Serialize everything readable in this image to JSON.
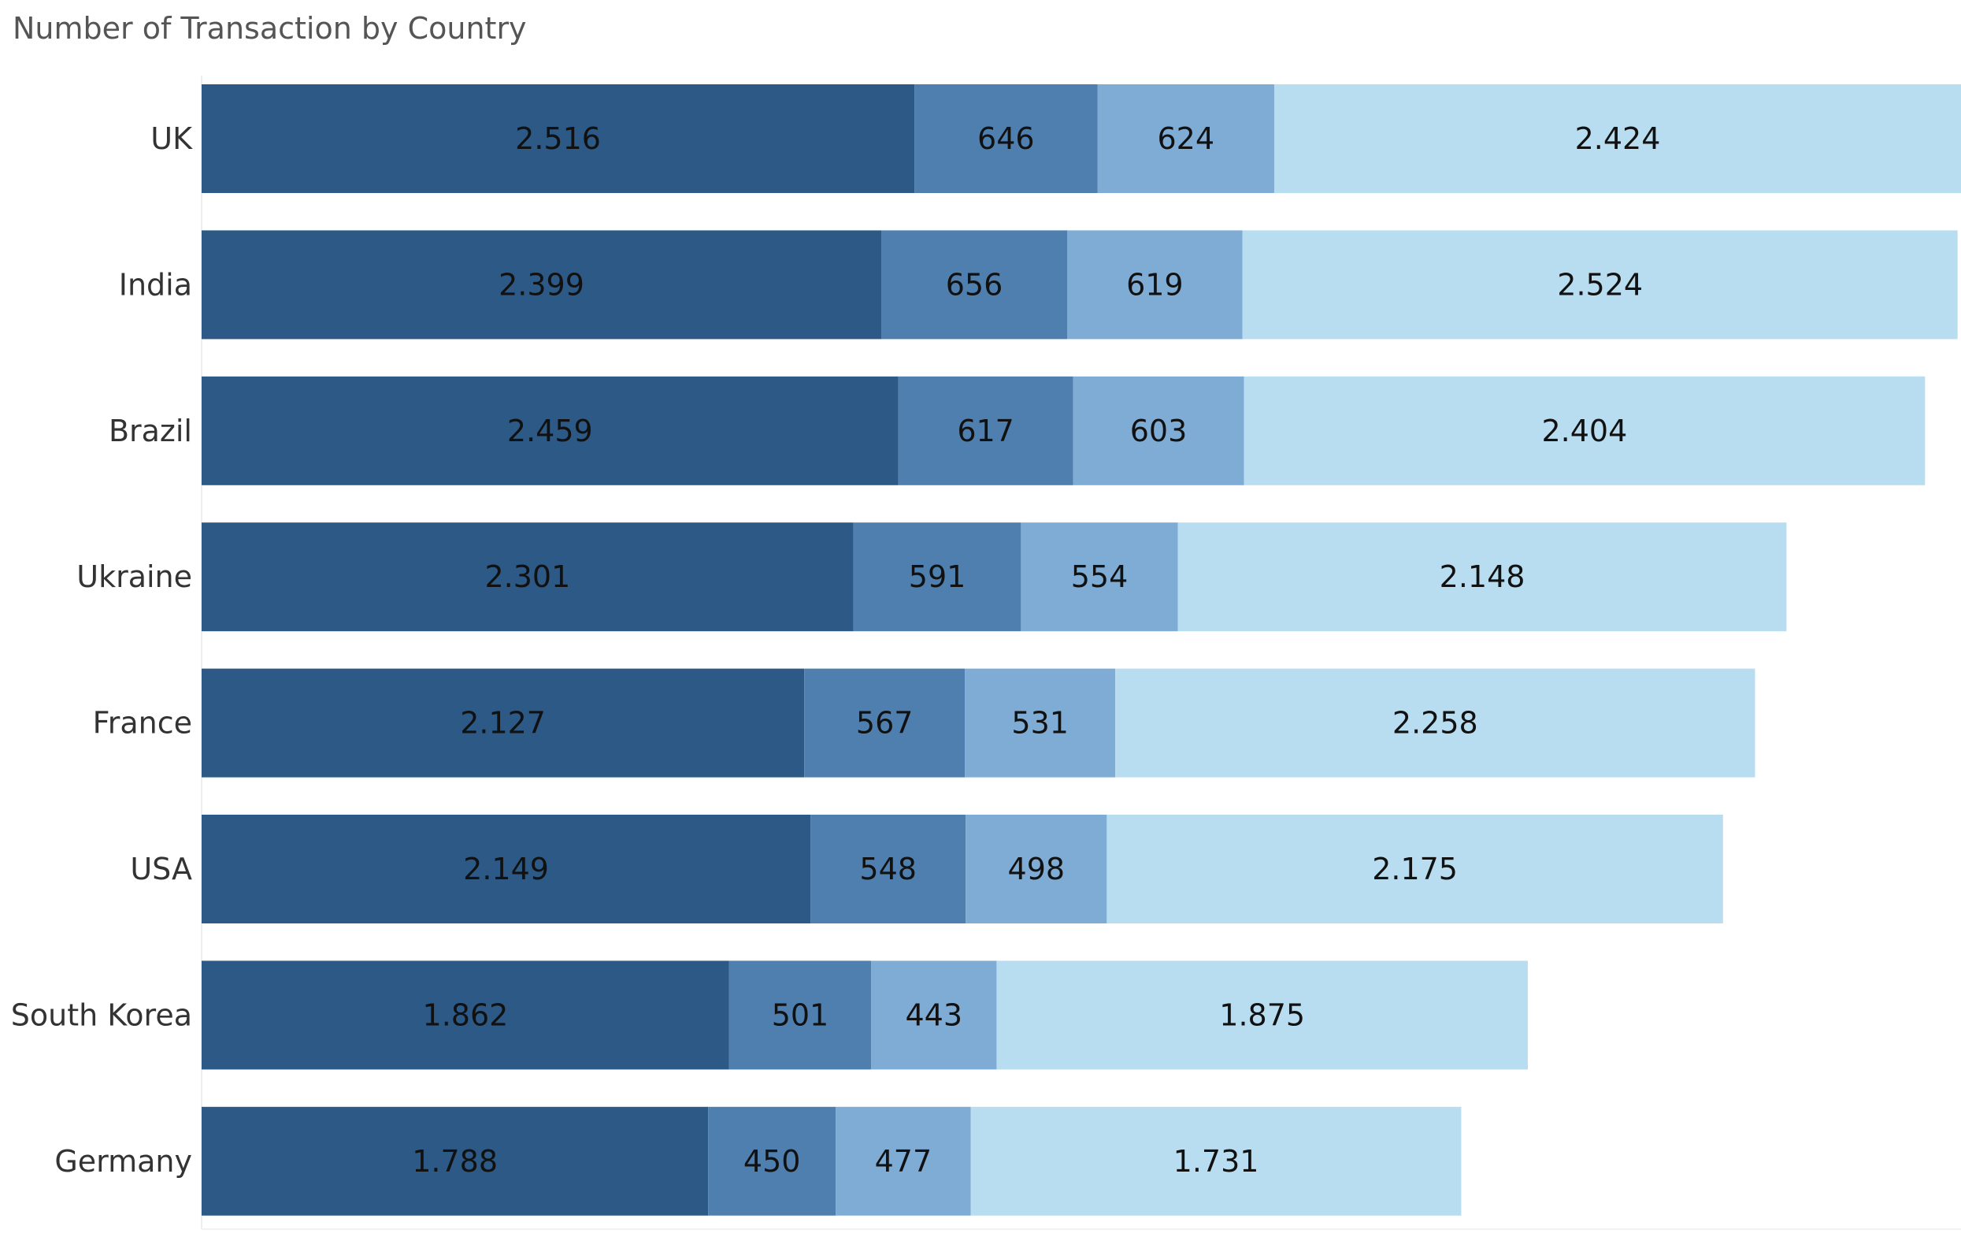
{
  "chart_data": {
    "type": "bar",
    "orientation": "horizontal",
    "stacked": true,
    "title": "Number of Transaction by Country",
    "categories": [
      "UK",
      "India",
      "Brazil",
      "Ukraine",
      "France",
      "USA",
      "South Korea",
      "Germany"
    ],
    "series": [
      {
        "values": [
          2516,
          2399,
          2459,
          2301,
          2127,
          2149,
          1862,
          1788
        ],
        "labels": [
          "2.516",
          "2.399",
          "2.459",
          "2.301",
          "2.127",
          "2.149",
          "1.862",
          "1.788"
        ],
        "color": "#2c5985"
      },
      {
        "values": [
          646,
          656,
          617,
          591,
          567,
          548,
          501,
          450
        ],
        "labels": [
          "646",
          "656",
          "617",
          "591",
          "567",
          "548",
          "501",
          "450"
        ],
        "color": "#4e7fae"
      },
      {
        "values": [
          624,
          619,
          603,
          554,
          531,
          498,
          443,
          477
        ],
        "labels": [
          "624",
          "619",
          "603",
          "554",
          "531",
          "498",
          "443",
          "477"
        ],
        "color": "#7eacd4"
      },
      {
        "values": [
          2424,
          2524,
          2404,
          2148,
          2258,
          2175,
          1875,
          1731
        ],
        "labels": [
          "2.424",
          "2.524",
          "2.404",
          "2.148",
          "2.258",
          "2.175",
          "1.875",
          "1.731"
        ],
        "color": "#b9ddf0"
      }
    ],
    "xlim": [
      0,
      6210
    ],
    "grid": false,
    "legend": "none",
    "data_labels": "inside-center"
  }
}
